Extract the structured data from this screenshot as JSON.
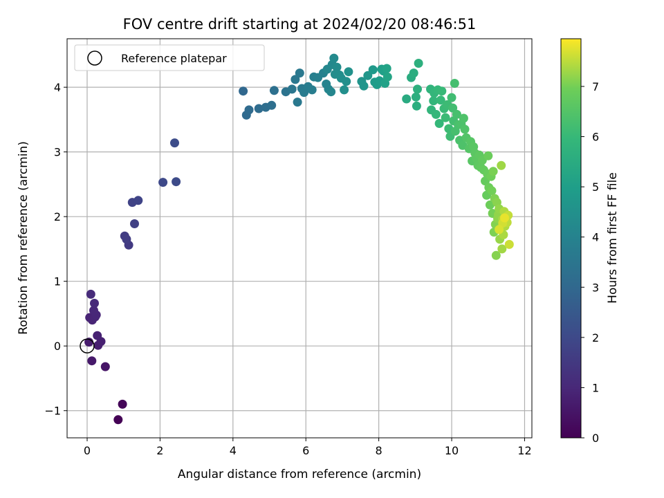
{
  "chart_data": {
    "type": "scatter",
    "title": "FOV centre drift starting at 2024/02/20 08:46:51",
    "xlabel": "Angular distance from reference (arcmin)",
    "ylabel": "Rotation from reference (arcmin)",
    "colorbar_label": "Hours from first FF file",
    "colormap": "viridis",
    "xlim": [
      -0.55,
      12.2
    ],
    "ylim": [
      -1.42,
      4.75
    ],
    "clim": [
      0,
      7.95
    ],
    "x_ticks": [
      0,
      2,
      4,
      6,
      8,
      10,
      12
    ],
    "y_ticks": [
      -1,
      0,
      1,
      2,
      3,
      4
    ],
    "colorbar_ticks": [
      0,
      1,
      2,
      3,
      4,
      5,
      6,
      7
    ],
    "grid": true,
    "legend": {
      "placement": "top-left",
      "entries": [
        {
          "label": "Reference platepar",
          "marker": "open-circle"
        }
      ]
    },
    "reference_point": {
      "x": 0,
      "y": 0
    },
    "points": [
      [
        0.85,
        -1.14,
        0.02
      ],
      [
        0.97,
        -0.9,
        0.12
      ],
      [
        0.5,
        -0.32,
        0.5
      ],
      [
        0.13,
        -0.23,
        0.62
      ],
      [
        0.05,
        0.06,
        0.7
      ],
      [
        0.3,
        0.01,
        0.75
      ],
      [
        0.38,
        0.07,
        0.8
      ],
      [
        0.28,
        0.16,
        0.85
      ],
      [
        0.07,
        0.44,
        0.9
      ],
      [
        0.14,
        0.4,
        0.92
      ],
      [
        0.22,
        0.45,
        0.95
      ],
      [
        0.25,
        0.48,
        0.98
      ],
      [
        0.18,
        0.55,
        1.0
      ],
      [
        0.2,
        0.66,
        1.05
      ],
      [
        0.1,
        0.8,
        1.1
      ],
      [
        1.14,
        1.56,
        1.55
      ],
      [
        1.03,
        1.7,
        1.6
      ],
      [
        1.08,
        1.65,
        1.62
      ],
      [
        1.3,
        1.89,
        1.72
      ],
      [
        1.24,
        2.22,
        1.8
      ],
      [
        1.4,
        2.25,
        1.85
      ],
      [
        2.08,
        2.53,
        2.0
      ],
      [
        2.44,
        2.54,
        2.05
      ],
      [
        2.4,
        3.14,
        2.1
      ],
      [
        4.28,
        3.94,
        3.0
      ],
      [
        4.37,
        3.57,
        3.05
      ],
      [
        4.44,
        3.65,
        3.1
      ],
      [
        4.71,
        3.67,
        3.15
      ],
      [
        4.9,
        3.69,
        3.2
      ],
      [
        5.06,
        3.72,
        3.25
      ],
      [
        5.13,
        3.95,
        3.3
      ],
      [
        5.45,
        3.93,
        3.4
      ],
      [
        5.62,
        3.97,
        3.5
      ],
      [
        5.71,
        4.12,
        3.55
      ],
      [
        5.77,
        3.77,
        3.58
      ],
      [
        5.83,
        4.22,
        3.6
      ],
      [
        5.89,
        3.98,
        3.65
      ],
      [
        5.95,
        3.92,
        3.7
      ],
      [
        6.06,
        4.01,
        3.75
      ],
      [
        6.17,
        3.96,
        3.8
      ],
      [
        6.22,
        4.16,
        3.85
      ],
      [
        6.33,
        4.15,
        3.9
      ],
      [
        6.48,
        4.22,
        3.95
      ],
      [
        6.56,
        4.05,
        4.0
      ],
      [
        6.62,
        3.97,
        4.05
      ],
      [
        6.69,
        3.93,
        4.1
      ],
      [
        6.59,
        4.28,
        4.15
      ],
      [
        6.72,
        4.35,
        4.2
      ],
      [
        6.77,
        4.45,
        4.25
      ],
      [
        6.85,
        4.31,
        4.3
      ],
      [
        6.8,
        4.2,
        4.32
      ],
      [
        6.92,
        4.19,
        4.35
      ],
      [
        6.97,
        4.14,
        4.4
      ],
      [
        7.05,
        3.96,
        4.42
      ],
      [
        7.11,
        4.09,
        4.45
      ],
      [
        7.17,
        4.24,
        4.5
      ],
      [
        7.53,
        4.09,
        4.6
      ],
      [
        7.59,
        4.02,
        4.65
      ],
      [
        7.7,
        4.18,
        4.7
      ],
      [
        7.84,
        4.27,
        4.8
      ],
      [
        7.89,
        4.08,
        4.85
      ],
      [
        7.95,
        4.04,
        4.9
      ],
      [
        8.02,
        4.1,
        4.95
      ],
      [
        8.08,
        4.28,
        5.0
      ],
      [
        8.13,
        4.25,
        5.05
      ],
      [
        8.17,
        4.06,
        5.1
      ],
      [
        8.22,
        4.29,
        5.15
      ],
      [
        8.24,
        4.16,
        5.2
      ],
      [
        8.76,
        3.82,
        5.45
      ],
      [
        8.89,
        4.15,
        5.5
      ],
      [
        8.96,
        4.22,
        5.55
      ],
      [
        9.02,
        3.85,
        5.6
      ],
      [
        9.04,
        3.71,
        5.62
      ],
      [
        9.06,
        3.97,
        5.64
      ],
      [
        9.09,
        4.37,
        5.66
      ],
      [
        9.42,
        3.97,
        5.8
      ],
      [
        9.44,
        3.65,
        5.85
      ],
      [
        9.5,
        3.79,
        5.88
      ],
      [
        9.52,
        3.91,
        5.9
      ],
      [
        9.57,
        3.58,
        5.93
      ],
      [
        9.62,
        3.96,
        5.95
      ],
      [
        9.66,
        3.44,
        5.97
      ],
      [
        9.7,
        3.8,
        6.0
      ],
      [
        9.73,
        3.94,
        6.02
      ],
      [
        9.79,
        3.67,
        6.05
      ],
      [
        9.83,
        3.53,
        6.08
      ],
      [
        9.88,
        3.73,
        6.1
      ],
      [
        9.92,
        3.36,
        6.12
      ],
      [
        9.96,
        3.24,
        6.15
      ],
      [
        10.0,
        3.84,
        6.18
      ],
      [
        10.03,
        3.68,
        6.2
      ],
      [
        10.05,
        3.48,
        6.22
      ],
      [
        10.08,
        4.06,
        6.25
      ],
      [
        10.1,
        3.32,
        6.28
      ],
      [
        10.14,
        3.58,
        6.3
      ],
      [
        10.18,
        3.42,
        6.33
      ],
      [
        10.22,
        3.18,
        6.36
      ],
      [
        10.26,
        3.43,
        6.38
      ],
      [
        10.3,
        3.1,
        6.4
      ],
      [
        10.33,
        3.52,
        6.42
      ],
      [
        10.36,
        3.35,
        6.45
      ],
      [
        10.4,
        3.22,
        6.48
      ],
      [
        10.48,
        3.05,
        6.52
      ],
      [
        10.52,
        3.16,
        6.55
      ],
      [
        10.56,
        2.86,
        6.58
      ],
      [
        10.6,
        3.08,
        6.6
      ],
      [
        10.64,
        2.98,
        6.63
      ],
      [
        10.68,
        2.9,
        6.66
      ],
      [
        10.72,
        2.79,
        6.68
      ],
      [
        10.76,
        2.95,
        6.7
      ],
      [
        10.8,
        2.76,
        6.73
      ],
      [
        10.84,
        2.87,
        6.76
      ],
      [
        10.88,
        2.72,
        6.78
      ],
      [
        10.92,
        2.55,
        6.8
      ],
      [
        10.96,
        2.33,
        6.82
      ],
      [
        10.98,
        2.66,
        6.85
      ],
      [
        11.0,
        2.94,
        6.88
      ],
      [
        11.02,
        2.45,
        6.9
      ],
      [
        11.05,
        2.18,
        6.92
      ],
      [
        11.08,
        2.62,
        6.95
      ],
      [
        11.1,
        2.4,
        6.98
      ],
      [
        11.12,
        2.05,
        7.0
      ],
      [
        11.14,
        2.7,
        7.03
      ],
      [
        11.16,
        1.76,
        7.06
      ],
      [
        11.18,
        2.28,
        7.08
      ],
      [
        11.2,
        1.88,
        7.1
      ],
      [
        11.22,
        1.4,
        7.12
      ],
      [
        11.24,
        2.22,
        7.15
      ],
      [
        11.26,
        1.97,
        7.18
      ],
      [
        11.28,
        2.03,
        7.2
      ],
      [
        11.3,
        2.12,
        7.22
      ],
      [
        11.32,
        1.65,
        7.25
      ],
      [
        11.34,
        1.82,
        7.28
      ],
      [
        11.36,
        2.79,
        7.3
      ],
      [
        11.38,
        1.5,
        7.32
      ],
      [
        11.4,
        1.96,
        7.35
      ],
      [
        11.42,
        1.72,
        7.38
      ],
      [
        11.44,
        2.08,
        7.4
      ],
      [
        11.46,
        1.85,
        7.42
      ],
      [
        11.48,
        1.93,
        7.45
      ],
      [
        11.5,
        2.0,
        7.48
      ],
      [
        11.52,
        1.91,
        7.52
      ],
      [
        11.55,
        2.02,
        7.55
      ],
      [
        11.58,
        1.57,
        7.6
      ],
      [
        11.4,
        1.9,
        7.65
      ],
      [
        11.3,
        1.8,
        7.7
      ],
      [
        11.45,
        1.98,
        7.8
      ]
    ]
  }
}
